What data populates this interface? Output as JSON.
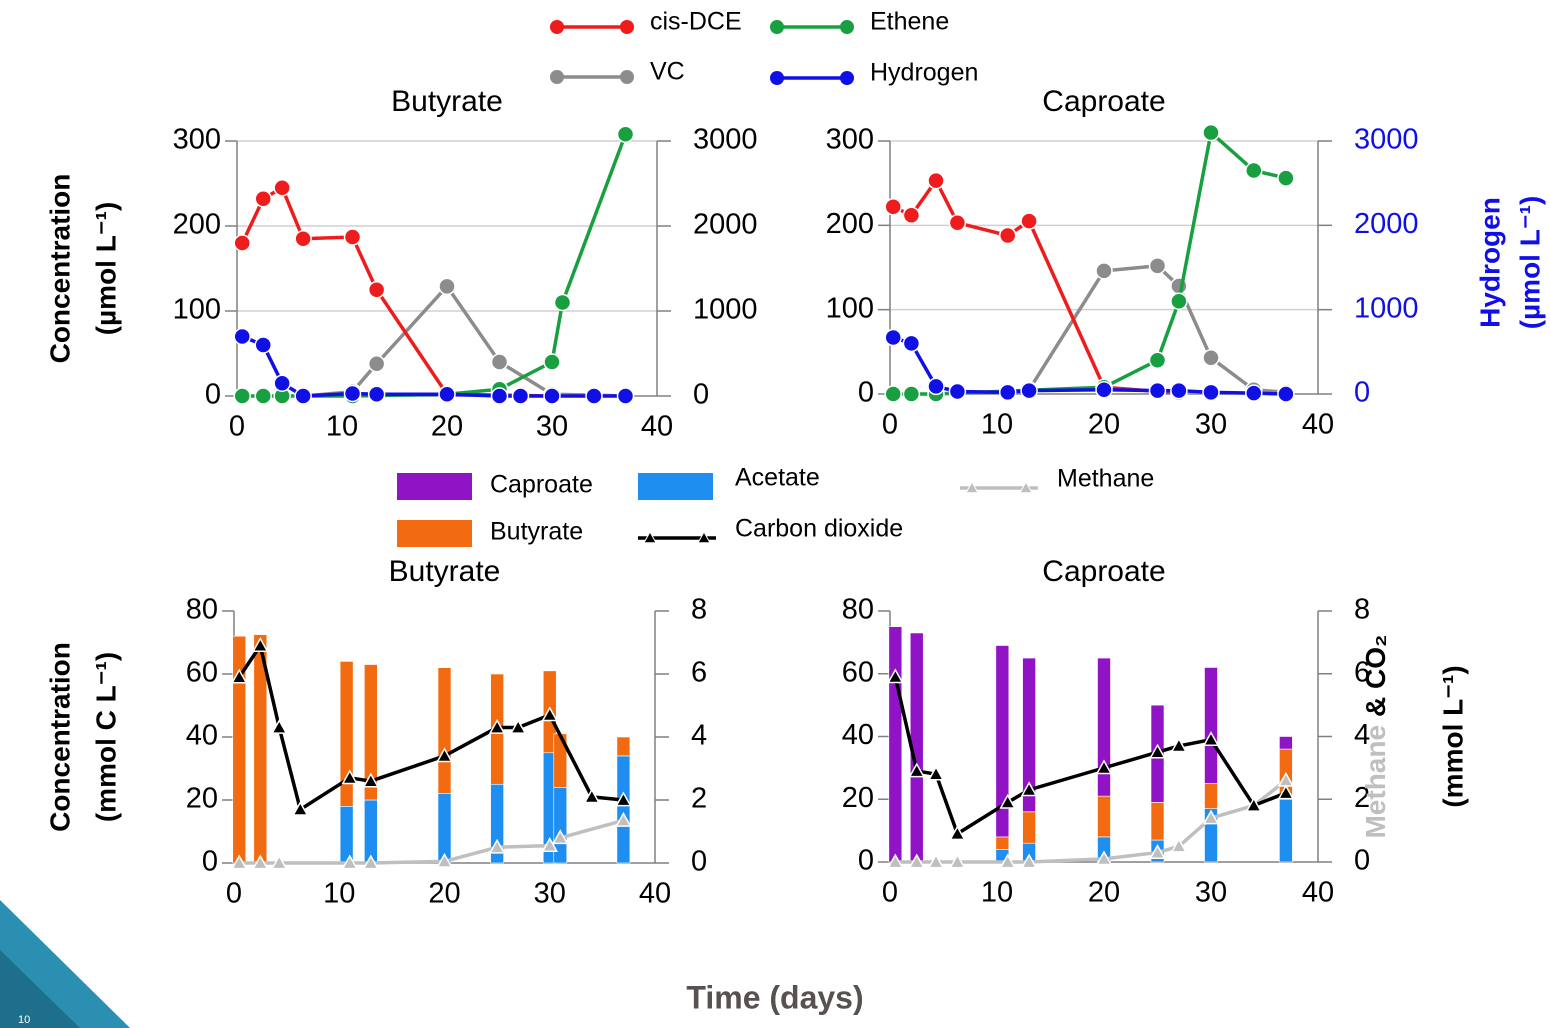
{
  "page_number": "10",
  "xlabel": "Time (days)",
  "chart_data": [
    {
      "type": "line",
      "title": "Butyrate",
      "xlim": [
        0,
        40
      ],
      "xticks": [
        0,
        10,
        20,
        30,
        40
      ],
      "ylim": [
        0,
        300
      ],
      "yticks": [
        0,
        100,
        200,
        300
      ],
      "y2lim": [
        0,
        3000
      ],
      "y2ticks": [
        0,
        1000,
        2000,
        3000
      ],
      "grid": true,
      "ylabel": [
        "Concentration",
        "(µmol L⁻¹)"
      ],
      "series": [
        {
          "name": "cis-DCE",
          "color": "#ee1c1c",
          "x": [
            0.5,
            2.5,
            4.3,
            6.3,
            11,
            13.3,
            20,
            25,
            30
          ],
          "values": [
            180,
            232,
            245,
            185,
            187,
            125,
            2,
            1,
            0
          ]
        },
        {
          "name": "VC",
          "color": "#8c8c8c",
          "x": [
            6.3,
            11,
            13.3,
            20,
            25,
            30,
            34,
            37
          ],
          "values": [
            0,
            5,
            38,
            129,
            40,
            2,
            1,
            0
          ]
        },
        {
          "name": "Ethene",
          "color": "#18a040",
          "x": [
            0.5,
            2.5,
            4.3,
            11,
            20,
            25,
            30,
            31,
            37
          ],
          "values": [
            0,
            0,
            0,
            0,
            2,
            8,
            40,
            110,
            308
          ]
        },
        {
          "name": "Hydrogen",
          "color": "#1010e6",
          "axis": "y2",
          "x": [
            0.5,
            2.5,
            4.3,
            6.3,
            11,
            13.3,
            20,
            25,
            27,
            30,
            34,
            37
          ],
          "values": [
            700,
            600,
            150,
            0,
            30,
            20,
            20,
            0,
            0,
            0,
            0,
            0
          ]
        }
      ]
    },
    {
      "type": "line",
      "title": "Caproate",
      "xlim": [
        0,
        40
      ],
      "xticks": [
        0,
        10,
        20,
        30,
        40
      ],
      "ylim": [
        0,
        300
      ],
      "yticks": [
        0,
        100,
        200,
        300
      ],
      "y2lim": [
        0,
        3000
      ],
      "y2ticks": [
        0,
        1000,
        2000,
        3000
      ],
      "grid": true,
      "y2tick_color": "#1010e6",
      "y2label": [
        "Hydrogen",
        "(µmol L⁻¹)"
      ],
      "series": [
        {
          "color": "#ee1c1c",
          "x": [
            0.3,
            2,
            4.3,
            6.3,
            11,
            13,
            20,
            25,
            27
          ],
          "values": [
            222,
            212,
            253,
            203,
            188,
            205,
            8,
            3,
            2
          ]
        },
        {
          "color": "#8c8c8c",
          "x": [
            13,
            20,
            25,
            27,
            30,
            34,
            37
          ],
          "values": [
            5,
            146,
            152,
            128,
            43,
            5,
            2
          ]
        },
        {
          "color": "#18a040",
          "x": [
            0.3,
            2,
            4.3,
            20,
            25,
            27,
            30,
            34,
            37
          ],
          "values": [
            0,
            0,
            0,
            8,
            40,
            110,
            310,
            265,
            256
          ]
        },
        {
          "color": "#1010e6",
          "axis": "y2",
          "x": [
            0.3,
            2,
            4.3,
            6.3,
            11,
            13,
            20,
            25,
            27,
            30,
            34,
            37
          ],
          "values": [
            670,
            600,
            90,
            30,
            20,
            40,
            50,
            40,
            40,
            20,
            10,
            0
          ]
        }
      ]
    },
    {
      "type": "combo",
      "title": "Butyrate",
      "xlim": [
        0,
        40
      ],
      "xticks": [
        0,
        10,
        20,
        30,
        40
      ],
      "ylim": [
        0,
        80
      ],
      "yticks": [
        0,
        20,
        40,
        60,
        80
      ],
      "y2lim": [
        0,
        8
      ],
      "y2ticks": [
        0,
        2,
        4,
        6,
        8
      ],
      "ylabel": [
        "Concentration",
        "(mmol C L⁻¹)"
      ],
      "bar_x": [
        0.5,
        2.5,
        10.7,
        13,
        20,
        25,
        30,
        31,
        37
      ],
      "series": [
        {
          "type": "bar",
          "color": "#1e8ef0",
          "values": [
            0,
            0,
            18,
            20,
            22,
            25,
            35,
            24,
            34
          ]
        },
        {
          "type": "bar",
          "color": "#f26b10",
          "values": [
            72,
            72.5,
            46,
            43,
            40,
            35,
            26,
            17,
            6
          ]
        },
        {
          "type": "line",
          "axis": "y2",
          "color": "#000000",
          "x": [
            0.5,
            2.5,
            4.3,
            6.3,
            11,
            13,
            20,
            25,
            27,
            30,
            34,
            37
          ],
          "values": [
            5.9,
            6.9,
            4.3,
            1.7,
            2.7,
            2.6,
            3.4,
            4.3,
            4.3,
            4.7,
            2.1,
            2.0
          ]
        },
        {
          "type": "line",
          "axis": "y2",
          "color": "#bfbfbf",
          "x": [
            0.5,
            2.5,
            4.3,
            11,
            13,
            20,
            25,
            30,
            31,
            37
          ],
          "values": [
            0,
            0,
            0,
            0,
            0,
            0.05,
            0.5,
            0.55,
            0.8,
            1.35
          ]
        }
      ]
    },
    {
      "type": "combo",
      "title": "Caproate",
      "xlim": [
        0,
        40
      ],
      "xticks": [
        0,
        10,
        20,
        30,
        40
      ],
      "ylim": [
        0,
        80
      ],
      "yticks": [
        0,
        20,
        40,
        60,
        80
      ],
      "y2lim": [
        0,
        8
      ],
      "y2ticks": [
        0,
        2,
        4,
        6,
        8
      ],
      "y2label": [
        "Methane",
        "& CO₂",
        "(mmol L⁻¹)"
      ],
      "bar_x": [
        0.5,
        2.5,
        10.5,
        13,
        20,
        25,
        30,
        37
      ],
      "series": [
        {
          "name": "Acetate",
          "type": "bar",
          "color": "#1e8ef0",
          "values": [
            0,
            0,
            4,
            6,
            8,
            7,
            17,
            20
          ]
        },
        {
          "name": "Butyrate",
          "type": "bar",
          "color": "#f26b10",
          "values": [
            0,
            0,
            4,
            10,
            13,
            12,
            8,
            16
          ]
        },
        {
          "name": "Caproate",
          "type": "bar",
          "color": "#9013c6",
          "values": [
            75,
            73,
            61,
            49,
            44,
            31,
            37,
            4
          ]
        },
        {
          "name": "Carbon dioxide",
          "type": "line",
          "axis": "y2",
          "color": "#000000",
          "x": [
            0.5,
            2.5,
            4.3,
            6.3,
            11,
            13,
            20,
            25,
            27,
            30,
            34,
            37
          ],
          "values": [
            5.9,
            2.9,
            2.8,
            0.9,
            1.9,
            2.3,
            3.0,
            3.5,
            3.7,
            3.9,
            1.8,
            2.2
          ]
        },
        {
          "name": "Methane",
          "type": "line",
          "axis": "y2",
          "color": "#bfbfbf",
          "x": [
            0.5,
            2.5,
            4.3,
            6.3,
            11,
            13,
            20,
            25,
            27,
            30,
            34,
            37
          ],
          "values": [
            0,
            0,
            0,
            0,
            0,
            0,
            0.1,
            0.3,
            0.5,
            1.4,
            1.8,
            2.6
          ]
        }
      ]
    }
  ]
}
